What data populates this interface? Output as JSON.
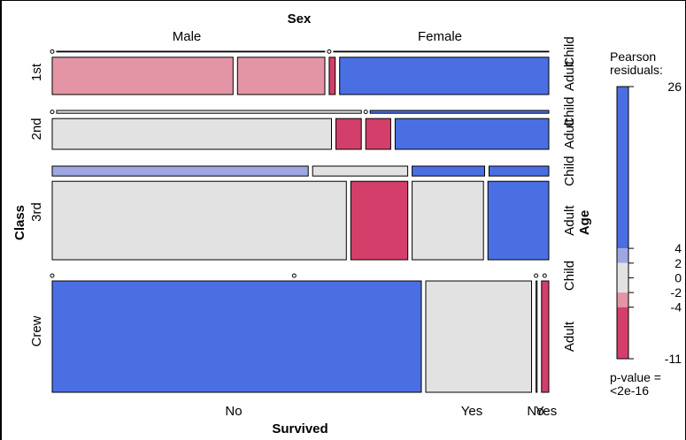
{
  "chart_data": {
    "type": "mosaic",
    "title_top": "Sex",
    "xlabel": "Survived",
    "ylabel_left": "Class",
    "ylabel_right": "Age",
    "sex_levels": [
      "Male",
      "Female"
    ],
    "class_levels": [
      "1st",
      "2nd",
      "3rd",
      "Crew"
    ],
    "age_levels": [
      "Child",
      "Adult"
    ],
    "survived_levels": [
      "No",
      "Yes"
    ],
    "bottom_tick_labels": [
      "No",
      "Yes",
      "No",
      "Yes"
    ],
    "legend": {
      "title": "Pearson residuals:",
      "ticks": [
        "26",
        "4",
        "2",
        "0",
        "-2",
        "-4",
        "-11"
      ],
      "pvalue_label": "p-value =",
      "pvalue": "<2e-16",
      "colors": {
        "pos_high": "#4a6fe3",
        "pos_low": "#9da8e2",
        "neutral": "#e2e2e2",
        "neg_low": "#e495a5",
        "neg_high": "#d33f6a"
      }
    },
    "cells": [
      {
        "class": "1st",
        "sex": "Male",
        "age": "Child",
        "survived": "No",
        "count": 0,
        "shade": "neutral"
      },
      {
        "class": "1st",
        "sex": "Male",
        "age": "Child",
        "survived": "Yes",
        "count": 5,
        "shade": "neutral"
      },
      {
        "class": "1st",
        "sex": "Male",
        "age": "Adult",
        "survived": "No",
        "count": 118,
        "shade": "neg_low"
      },
      {
        "class": "1st",
        "sex": "Male",
        "age": "Adult",
        "survived": "Yes",
        "count": 57,
        "shade": "neg_low"
      },
      {
        "class": "1st",
        "sex": "Female",
        "age": "Child",
        "survived": "No",
        "count": 0,
        "shade": "neutral"
      },
      {
        "class": "1st",
        "sex": "Female",
        "age": "Child",
        "survived": "Yes",
        "count": 1,
        "shade": "neutral"
      },
      {
        "class": "1st",
        "sex": "Female",
        "age": "Adult",
        "survived": "No",
        "count": 4,
        "shade": "neg_high"
      },
      {
        "class": "1st",
        "sex": "Female",
        "age": "Adult",
        "survived": "Yes",
        "count": 140,
        "shade": "pos_high"
      },
      {
        "class": "2nd",
        "sex": "Male",
        "age": "Child",
        "survived": "No",
        "count": 0,
        "shade": "neutral"
      },
      {
        "class": "2nd",
        "sex": "Male",
        "age": "Child",
        "survived": "Yes",
        "count": 11,
        "shade": "neutral"
      },
      {
        "class": "2nd",
        "sex": "Male",
        "age": "Adult",
        "survived": "No",
        "count": 154,
        "shade": "neutral"
      },
      {
        "class": "2nd",
        "sex": "Male",
        "age": "Adult",
        "survived": "Yes",
        "count": 14,
        "shade": "neg_high"
      },
      {
        "class": "2nd",
        "sex": "Female",
        "age": "Child",
        "survived": "No",
        "count": 0,
        "shade": "neutral"
      },
      {
        "class": "2nd",
        "sex": "Female",
        "age": "Child",
        "survived": "Yes",
        "count": 13,
        "shade": "pos_high"
      },
      {
        "class": "2nd",
        "sex": "Female",
        "age": "Adult",
        "survived": "No",
        "count": 13,
        "shade": "neg_high"
      },
      {
        "class": "2nd",
        "sex": "Female",
        "age": "Adult",
        "survived": "Yes",
        "count": 80,
        "shade": "pos_high"
      },
      {
        "class": "3rd",
        "sex": "Male",
        "age": "Child",
        "survived": "No",
        "count": 35,
        "shade": "pos_low"
      },
      {
        "class": "3rd",
        "sex": "Male",
        "age": "Child",
        "survived": "Yes",
        "count": 13,
        "shade": "neutral"
      },
      {
        "class": "3rd",
        "sex": "Male",
        "age": "Adult",
        "survived": "No",
        "count": 387,
        "shade": "neutral"
      },
      {
        "class": "3rd",
        "sex": "Male",
        "age": "Adult",
        "survived": "Yes",
        "count": 75,
        "shade": "neg_high"
      },
      {
        "class": "3rd",
        "sex": "Female",
        "age": "Child",
        "survived": "No",
        "count": 17,
        "shade": "pos_high"
      },
      {
        "class": "3rd",
        "sex": "Female",
        "age": "Child",
        "survived": "Yes",
        "count": 14,
        "shade": "pos_high"
      },
      {
        "class": "3rd",
        "sex": "Female",
        "age": "Adult",
        "survived": "No",
        "count": 89,
        "shade": "neutral"
      },
      {
        "class": "3rd",
        "sex": "Female",
        "age": "Adult",
        "survived": "Yes",
        "count": 76,
        "shade": "pos_high"
      },
      {
        "class": "Crew",
        "sex": "Male",
        "age": "Child",
        "survived": "No",
        "count": 0,
        "shade": "neutral"
      },
      {
        "class": "Crew",
        "sex": "Male",
        "age": "Child",
        "survived": "Yes",
        "count": 0,
        "shade": "neutral"
      },
      {
        "class": "Crew",
        "sex": "Male",
        "age": "Adult",
        "survived": "No",
        "count": 670,
        "shade": "pos_high"
      },
      {
        "class": "Crew",
        "sex": "Male",
        "age": "Adult",
        "survived": "Yes",
        "count": 192,
        "shade": "neutral"
      },
      {
        "class": "Crew",
        "sex": "Female",
        "age": "Child",
        "survived": "No",
        "count": 0,
        "shade": "neutral"
      },
      {
        "class": "Crew",
        "sex": "Female",
        "age": "Child",
        "survived": "Yes",
        "count": 0,
        "shade": "neutral"
      },
      {
        "class": "Crew",
        "sex": "Female",
        "age": "Adult",
        "survived": "No",
        "count": 3,
        "shade": "neutral"
      },
      {
        "class": "Crew",
        "sex": "Female",
        "age": "Adult",
        "survived": "Yes",
        "count": 20,
        "shade": "neg_high"
      }
    ]
  }
}
